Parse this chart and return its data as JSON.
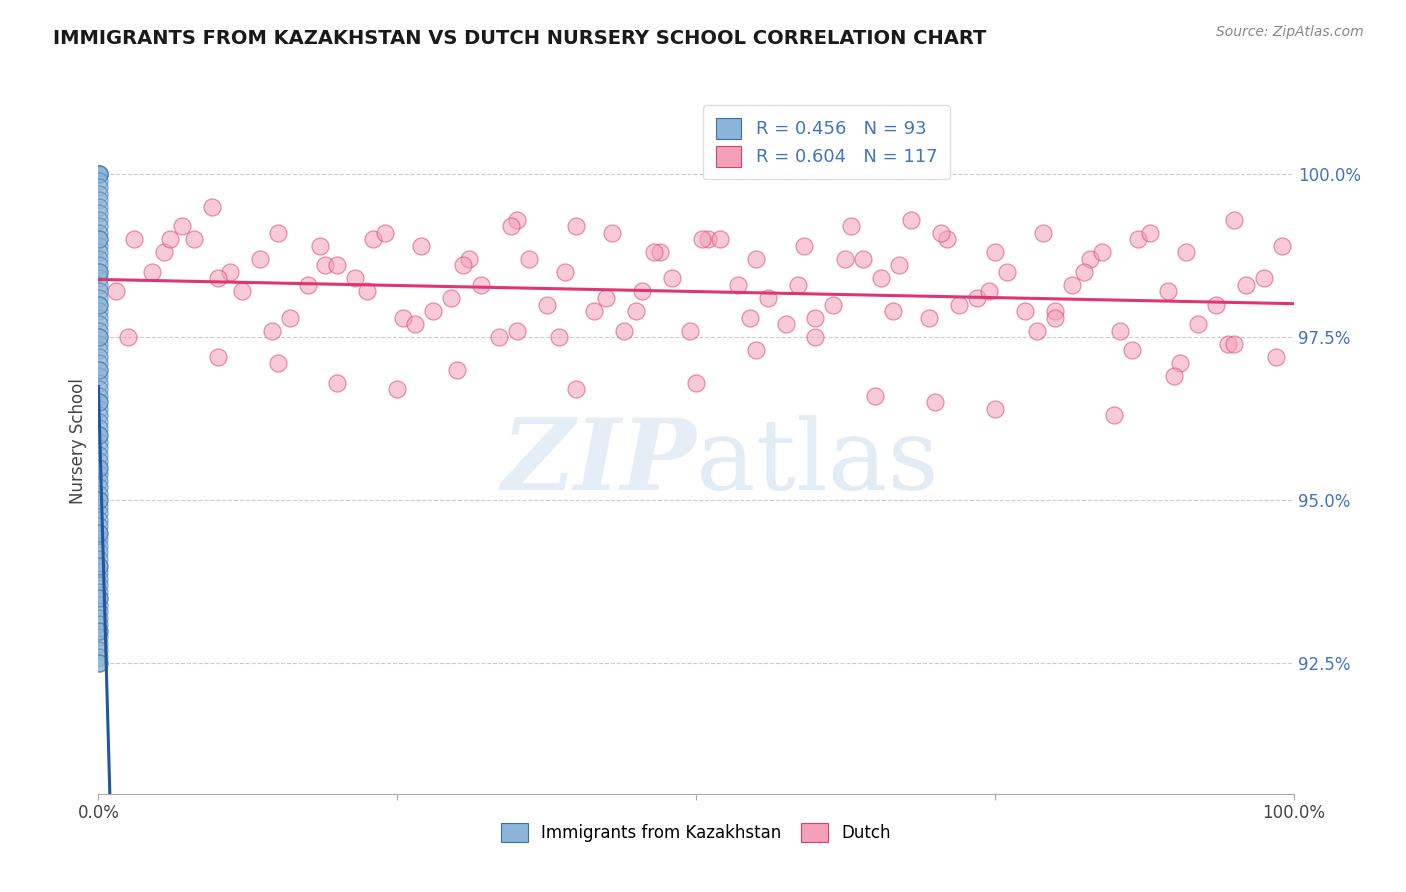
{
  "title": "IMMIGRANTS FROM KAZAKHSTAN VS DUTCH NURSERY SCHOOL CORRELATION CHART",
  "source_text": "Source: ZipAtlas.com",
  "ylabel": "Nursery School",
  "xlim": [
    0.0,
    100.0
  ],
  "ylim": [
    90.5,
    101.3
  ],
  "yticks": [
    92.5,
    95.0,
    97.5,
    100.0
  ],
  "ytick_labels": [
    "92.5%",
    "95.0%",
    "97.5%",
    "100.0%"
  ],
  "xtick_positions": [
    0.0,
    25.0,
    50.0,
    75.0,
    100.0
  ],
  "xtick_labels": [
    "0.0%",
    "",
    "",
    "",
    "100.0%"
  ],
  "legend_r_blue": "R = 0.456",
  "legend_n_blue": "N = 93",
  "legend_r_pink": "R = 0.604",
  "legend_n_pink": "N = 117",
  "blue_color": "#8ab4d8",
  "blue_edge_color": "#3a6ea8",
  "blue_line_color": "#2255a0",
  "pink_color": "#f4a0b8",
  "pink_edge_color": "#d84070",
  "pink_line_color": "#e03575",
  "label_blue": "Immigrants from Kazakhstan",
  "label_pink": "Dutch",
  "blue_x": [
    0.05,
    0.08,
    0.06,
    0.07,
    0.05,
    0.09,
    0.06,
    0.07,
    0.08,
    0.05,
    0.06,
    0.09,
    0.07,
    0.06,
    0.08,
    0.05,
    0.07,
    0.06,
    0.08,
    0.09,
    0.05,
    0.06,
    0.07,
    0.08,
    0.05,
    0.09,
    0.06,
    0.07,
    0.08,
    0.05,
    0.06,
    0.07,
    0.09,
    0.08,
    0.05,
    0.06,
    0.07,
    0.08,
    0.09,
    0.05,
    0.06,
    0.07,
    0.08,
    0.05,
    0.09,
    0.07,
    0.06,
    0.08,
    0.05,
    0.07,
    0.06,
    0.08,
    0.09,
    0.05,
    0.06,
    0.07,
    0.08,
    0.05,
    0.09,
    0.06,
    0.07,
    0.08,
    0.05,
    0.06,
    0.07,
    0.09,
    0.08,
    0.05,
    0.06,
    0.07,
    0.08,
    0.09,
    0.05,
    0.06,
    0.07,
    0.08,
    0.05,
    0.09,
    0.06,
    0.07,
    0.08,
    0.05,
    0.06,
    0.07,
    0.09,
    0.08,
    0.05,
    0.06,
    0.07,
    0.08,
    0.09,
    0.05,
    0.06
  ],
  "blue_y": [
    100.0,
    100.0,
    100.0,
    100.0,
    99.9,
    99.8,
    99.7,
    99.6,
    99.5,
    99.4,
    99.3,
    99.2,
    99.1,
    99.0,
    98.9,
    98.8,
    98.7,
    98.6,
    98.5,
    98.4,
    98.3,
    98.2,
    98.1,
    98.0,
    97.9,
    97.8,
    97.7,
    97.6,
    97.5,
    97.4,
    97.3,
    97.2,
    97.1,
    97.0,
    96.9,
    96.8,
    96.7,
    96.6,
    96.5,
    96.4,
    96.3,
    96.2,
    96.1,
    96.0,
    95.9,
    95.8,
    95.7,
    95.6,
    95.5,
    95.4,
    95.3,
    95.2,
    95.1,
    95.0,
    94.9,
    94.8,
    94.7,
    94.6,
    94.5,
    94.4,
    94.3,
    94.2,
    94.1,
    94.0,
    93.9,
    93.8,
    93.7,
    93.6,
    93.5,
    93.4,
    93.3,
    93.2,
    93.1,
    93.0,
    92.9,
    92.8,
    92.7,
    92.6,
    92.5,
    92.5,
    93.0,
    93.5,
    94.0,
    94.5,
    95.0,
    95.5,
    96.0,
    96.5,
    97.0,
    97.5,
    98.0,
    98.5,
    99.0
  ],
  "pink_x": [
    1.5,
    3.0,
    5.5,
    7.0,
    9.5,
    11.0,
    13.5,
    15.0,
    17.5,
    19.0,
    21.5,
    23.0,
    25.5,
    27.0,
    29.5,
    31.0,
    33.5,
    35.0,
    37.5,
    39.0,
    41.5,
    43.0,
    45.5,
    47.0,
    49.5,
    51.0,
    53.5,
    55.0,
    57.5,
    59.0,
    61.5,
    63.0,
    65.5,
    67.0,
    69.5,
    71.0,
    73.5,
    75.0,
    77.5,
    79.0,
    81.5,
    83.0,
    85.5,
    87.0,
    89.5,
    91.0,
    93.5,
    95.0,
    97.5,
    99.0,
    2.5,
    4.5,
    8.0,
    12.0,
    16.0,
    20.0,
    24.0,
    28.0,
    32.0,
    36.0,
    40.0,
    44.0,
    48.0,
    52.0,
    56.0,
    60.0,
    64.0,
    68.0,
    72.0,
    76.0,
    80.0,
    84.0,
    88.0,
    92.0,
    96.0,
    6.0,
    10.0,
    14.5,
    18.5,
    22.5,
    26.5,
    30.5,
    34.5,
    38.5,
    42.5,
    46.5,
    50.5,
    54.5,
    58.5,
    62.5,
    66.5,
    70.5,
    74.5,
    78.5,
    82.5,
    86.5,
    90.5,
    94.5,
    98.5,
    50.0,
    30.0,
    70.0,
    20.0,
    60.0,
    40.0,
    80.0,
    10.0,
    90.0,
    55.0,
    35.0,
    75.0,
    15.0,
    65.0,
    45.0,
    85.0,
    25.0,
    95.0
  ],
  "pink_y": [
    98.2,
    99.0,
    98.8,
    99.2,
    99.5,
    98.5,
    98.7,
    99.1,
    98.3,
    98.6,
    98.4,
    99.0,
    97.8,
    98.9,
    98.1,
    98.7,
    97.5,
    99.3,
    98.0,
    98.5,
    97.9,
    99.1,
    98.2,
    98.8,
    97.6,
    99.0,
    98.3,
    98.7,
    97.7,
    98.9,
    98.0,
    99.2,
    98.4,
    98.6,
    97.8,
    99.0,
    98.1,
    98.8,
    97.9,
    99.1,
    98.3,
    98.7,
    97.6,
    99.0,
    98.2,
    98.8,
    98.0,
    99.3,
    98.4,
    98.9,
    97.5,
    98.5,
    99.0,
    98.2,
    97.8,
    98.6,
    99.1,
    97.9,
    98.3,
    98.7,
    99.2,
    97.6,
    98.4,
    99.0,
    98.1,
    97.8,
    98.7,
    99.3,
    98.0,
    98.5,
    97.9,
    98.8,
    99.1,
    97.7,
    98.3,
    99.0,
    98.4,
    97.6,
    98.9,
    98.2,
    97.7,
    98.6,
    99.2,
    97.5,
    98.1,
    98.8,
    99.0,
    97.8,
    98.3,
    98.7,
    97.9,
    99.1,
    98.2,
    97.6,
    98.5,
    97.3,
    97.1,
    97.4,
    97.2,
    96.8,
    97.0,
    96.5,
    96.8,
    97.5,
    96.7,
    97.8,
    97.2,
    96.9,
    97.3,
    97.6,
    96.4,
    97.1,
    96.6,
    97.9,
    96.3,
    96.7,
    97.4
  ]
}
